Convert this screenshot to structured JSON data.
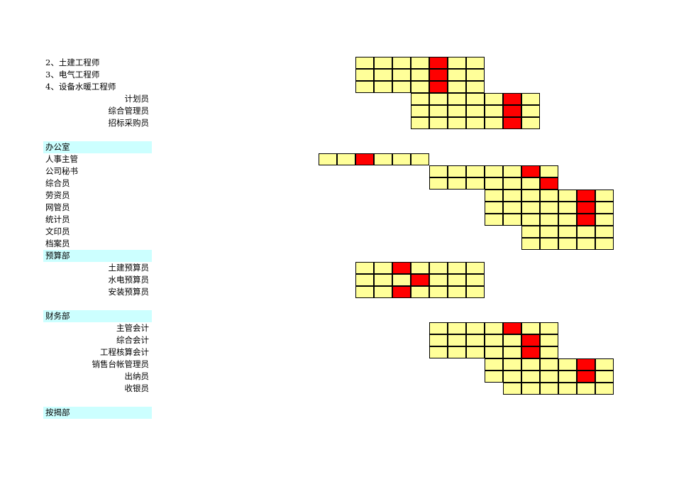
{
  "rows": [
    {
      "type": "item",
      "align": "left",
      "label": "2、土建工程师",
      "grid": {
        "start": 2,
        "len": 7,
        "hl": [
          6
        ]
      }
    },
    {
      "type": "item",
      "align": "left",
      "label": "3、电气工程师",
      "grid": {
        "start": 2,
        "len": 7,
        "hl": [
          6
        ]
      }
    },
    {
      "type": "item",
      "align": "left",
      "label": "4、设备水暖工程师",
      "grid": {
        "start": 2,
        "len": 7,
        "hl": [
          6
        ]
      }
    },
    {
      "type": "item",
      "align": "right",
      "label": "计划员",
      "grid": {
        "start": 5,
        "len": 7,
        "hl": [
          10
        ]
      }
    },
    {
      "type": "item",
      "align": "right",
      "label": "综合管理员",
      "grid": {
        "start": 5,
        "len": 7,
        "hl": [
          10
        ]
      }
    },
    {
      "type": "item",
      "align": "right",
      "label": "招标采购员",
      "grid": {
        "start": 5,
        "len": 7,
        "hl": [
          10
        ]
      }
    },
    {
      "type": "blank"
    },
    {
      "type": "header",
      "label": "办公室"
    },
    {
      "type": "item",
      "align": "left",
      "label": "人事主管",
      "grid": {
        "start": 0,
        "len": 6,
        "hl": [
          2
        ]
      }
    },
    {
      "type": "item",
      "align": "left",
      "label": "公司秘书",
      "grid": {
        "start": 6,
        "len": 7,
        "hl": [
          11
        ]
      }
    },
    {
      "type": "item",
      "align": "left",
      "label": "综合员",
      "grid": {
        "start": 6,
        "len": 7,
        "hl": [
          12
        ]
      }
    },
    {
      "type": "item",
      "align": "left",
      "label": "劳资员",
      "grid": {
        "start": 9,
        "len": 7,
        "hl": [
          14
        ]
      }
    },
    {
      "type": "item",
      "align": "left",
      "label": "网管员",
      "grid": {
        "start": 9,
        "len": 7,
        "hl": [
          14
        ]
      }
    },
    {
      "type": "item",
      "align": "left",
      "label": "统计员",
      "grid": {
        "start": 9,
        "len": 7,
        "hl": [
          14
        ]
      }
    },
    {
      "type": "item",
      "align": "left",
      "label": "文印员",
      "grid": {
        "start": 11,
        "len": 5,
        "hl": []
      }
    },
    {
      "type": "item",
      "align": "left",
      "label": "档案员",
      "grid": {
        "start": 11,
        "len": 5,
        "hl": []
      }
    },
    {
      "type": "header",
      "label": "预算部"
    },
    {
      "type": "item",
      "align": "right",
      "label": "土建预算员",
      "grid": {
        "start": 2,
        "len": 7,
        "hl": [
          4
        ]
      }
    },
    {
      "type": "item",
      "align": "right",
      "label": "水电预算员",
      "grid": {
        "start": 2,
        "len": 7,
        "hl": [
          5
        ]
      }
    },
    {
      "type": "item",
      "align": "right",
      "label": "安装预算员",
      "grid": {
        "start": 2,
        "len": 7,
        "hl": [
          4
        ]
      }
    },
    {
      "type": "blank"
    },
    {
      "type": "header",
      "label": "财务部"
    },
    {
      "type": "item",
      "align": "right",
      "label": "主管会计",
      "grid": {
        "start": 6,
        "len": 7,
        "hl": [
          10
        ]
      }
    },
    {
      "type": "item",
      "align": "right",
      "label": "综合会计",
      "grid": {
        "start": 6,
        "len": 7,
        "hl": [
          11
        ]
      }
    },
    {
      "type": "item",
      "align": "right",
      "label": "工程核算会计",
      "grid": {
        "start": 6,
        "len": 7,
        "hl": [
          11
        ]
      }
    },
    {
      "type": "item",
      "align": "right",
      "label": "销售台帐管理员",
      "grid": {
        "start": 9,
        "len": 7,
        "hl": [
          14
        ]
      }
    },
    {
      "type": "item",
      "align": "right",
      "label": "出纳员",
      "grid": {
        "start": 9,
        "len": 7,
        "hl": [
          14
        ]
      }
    },
    {
      "type": "item",
      "align": "right",
      "label": "收银员",
      "grid": {
        "start": 10,
        "len": 6,
        "hl": []
      }
    },
    {
      "type": "blank"
    },
    {
      "type": "header",
      "label": "按揭部"
    }
  ],
  "colors": {
    "cell_fill": "#ffff99",
    "cell_highlight": "#ff0000",
    "header_fill": "#ccffff"
  }
}
